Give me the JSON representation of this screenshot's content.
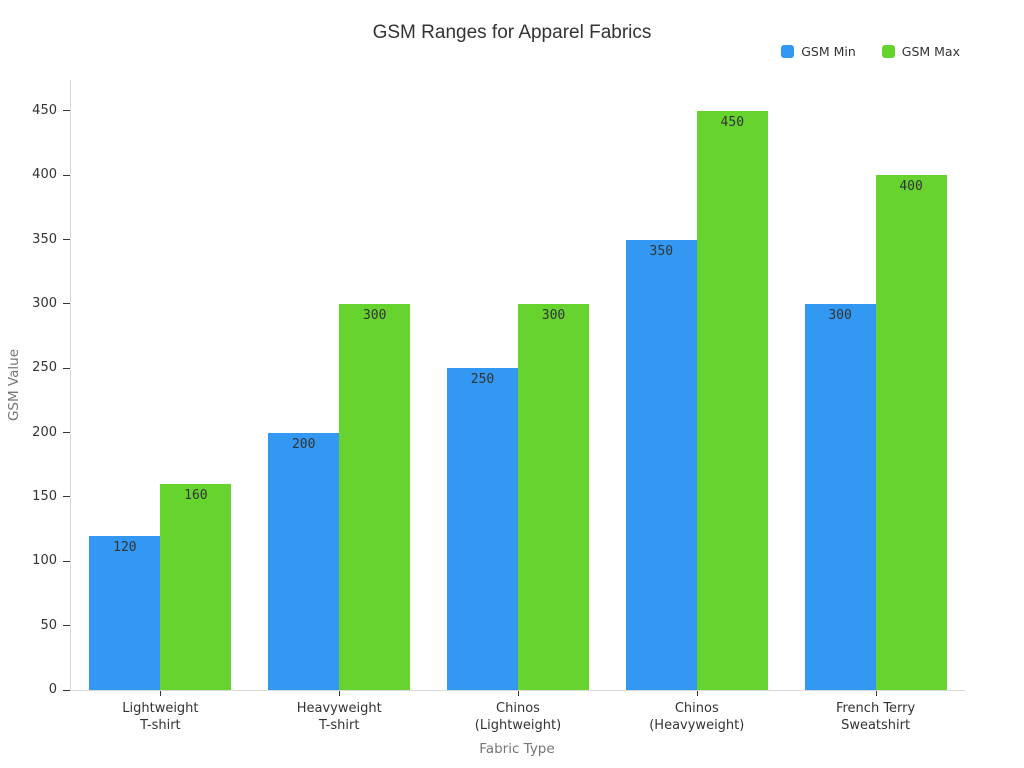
{
  "chart_data": {
    "type": "bar",
    "title": "GSM Ranges for Apparel Fabrics",
    "xlabel": "Fabric Type",
    "ylabel": "GSM Value",
    "categories": [
      "Lightweight\nT-shirt",
      "Heavyweight\nT-shirt",
      "Chinos\n(Lightweight)",
      "Chinos\n(Heavyweight)",
      "French Terry\nSweatshirt"
    ],
    "series": [
      {
        "name": "GSM Min",
        "color": "#3398F2",
        "values": [
          120,
          200,
          250,
          350,
          300
        ]
      },
      {
        "name": "GSM Max",
        "color": "#66D32E",
        "values": [
          160,
          300,
          300,
          450,
          400
        ]
      }
    ],
    "yticks": [
      0,
      50,
      100,
      150,
      200,
      250,
      300,
      350,
      400,
      450
    ],
    "ylim": [
      0,
      474
    ],
    "grid": false,
    "legend_position": "top-right",
    "bar_label_position": "inside-top",
    "colors": {
      "axis_line": "#d9d9d9",
      "tick": "#333333",
      "text": "#333333",
      "axis_title": "#757575"
    }
  }
}
